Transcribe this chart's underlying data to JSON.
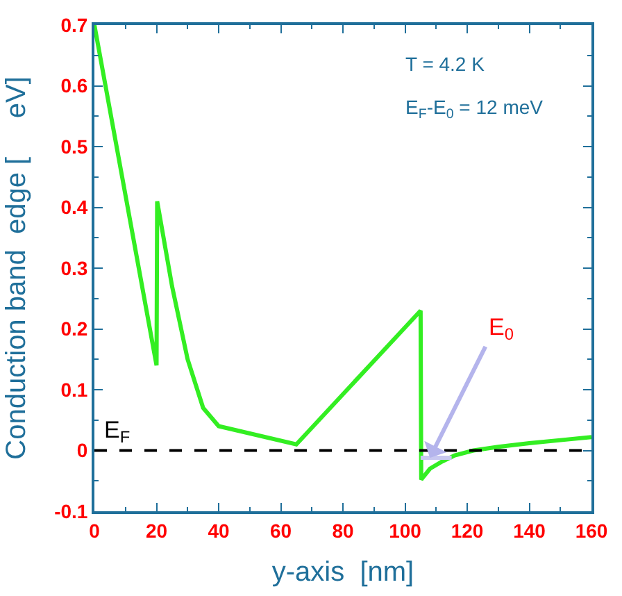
{
  "chart_data": {
    "type": "line",
    "xlabel": "y-axis  [nm]",
    "ylabel": "Conduction band  edge [     eV]",
    "xlim": [
      0,
      160
    ],
    "xticks": [
      0,
      20,
      40,
      60,
      80,
      100,
      120,
      140,
      160
    ],
    "ylim": [
      -0.1,
      0.7
    ],
    "yticks": [
      -0.1,
      0,
      0.1,
      0.2,
      0.3,
      0.4,
      0.5,
      0.6,
      0.7
    ],
    "series": [
      {
        "color": "#33ee22",
        "x": [
          0,
          20,
          20.2,
          25,
          30,
          35,
          40,
          65,
          105,
          105.2,
          108,
          112,
          116,
          122,
          130,
          140,
          150,
          160
        ],
        "values": [
          0.7,
          0.14,
          0.41,
          0.27,
          0.15,
          0.07,
          0.04,
          0.01,
          0.23,
          -0.048,
          -0.03,
          -0.018,
          -0.008,
          0,
          0.006,
          0.012,
          0.017,
          0.022
        ]
      },
      {
        "color": "#c8c8f0",
        "x": [
          105,
          115
        ],
        "values": [
          -0.012,
          -0.012
        ]
      }
    ],
    "ref_lines": [
      {
        "axis": "y",
        "value": 0,
        "label": "E$_{F}$",
        "color": "#000000",
        "line_style": "dashed"
      }
    ],
    "annotations": [
      "T = 4.2 K",
      "E$_{F}$-E$_{0}$ = 12 meV",
      {
        "text": "E$_{0}$",
        "x": 108,
        "y": -0.012
      }
    ],
    "marker": "none",
    "line_style": "solid"
  }
}
